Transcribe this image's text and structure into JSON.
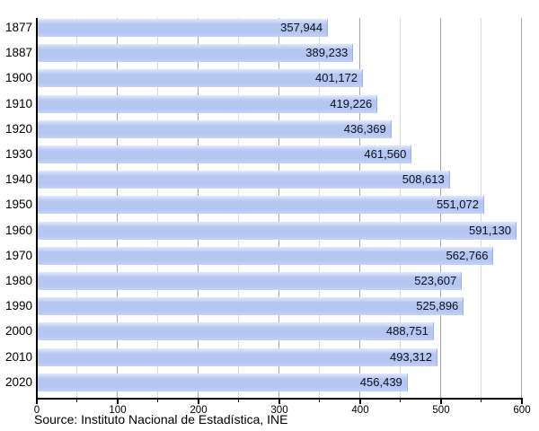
{
  "chart_data": {
    "type": "bar",
    "orientation": "horizontal",
    "title": "",
    "xlabel": "",
    "ylabel": "",
    "categories": [
      "1877",
      "1887",
      "1900",
      "1910",
      "1920",
      "1930",
      "1940",
      "1950",
      "1960",
      "1970",
      "1980",
      "1990",
      "2000",
      "2010",
      "2020"
    ],
    "values": [
      357944,
      389233,
      401172,
      419226,
      436369,
      461560,
      508613,
      551072,
      591130,
      562766,
      523607,
      525896,
      488751,
      493312,
      456439
    ],
    "value_labels": [
      "357,944",
      "389,233",
      "401,172",
      "419,226",
      "436,369",
      "461,560",
      "508,613",
      "551,072",
      "591,130",
      "562,766",
      "523,607",
      "525,896",
      "488,751",
      "493,312",
      "456,439"
    ],
    "xlim": [
      0,
      600
    ],
    "axis_divisor": 1000,
    "x_major_ticks": [
      0,
      100,
      200,
      300,
      400,
      500,
      600
    ],
    "x_minor_ticks": [
      50,
      150,
      250,
      350,
      450,
      550
    ],
    "grid": "vertical",
    "legend": "none"
  },
  "source_note": "Source: Instituto Nacional de Estadística, INE",
  "colors": {
    "bar_fill": "#b5c6f1",
    "bar_highlight": "#e2e9fc",
    "bar_border": "#9db3e8",
    "grid_minor": "#d9d9d9",
    "grid_major": "#a6a6a6",
    "axis": "#000000",
    "value_text": "#0a0f1e",
    "background": "#ffffff"
  }
}
